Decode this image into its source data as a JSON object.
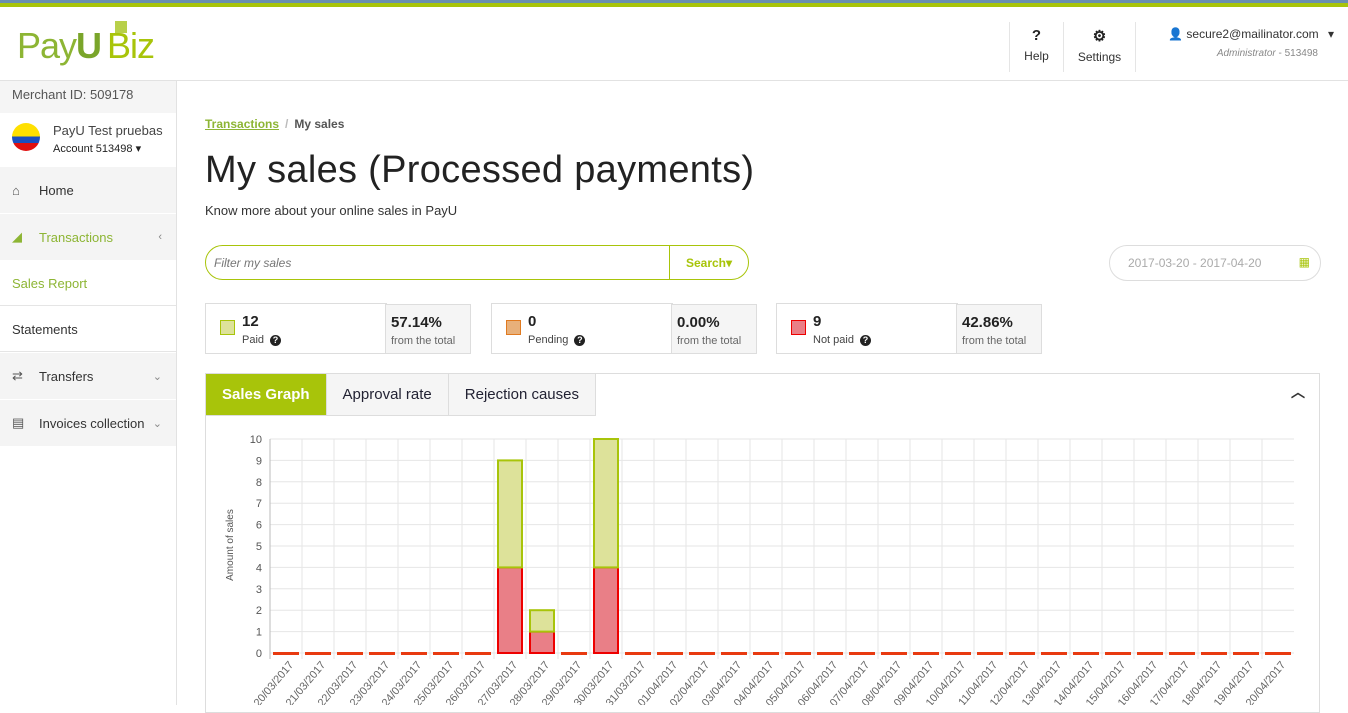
{
  "header": {
    "logo": "PayU Biz",
    "help": "Help",
    "settings": "Settings",
    "user_email": "secure2@mailinator.com",
    "user_role": "Administrator",
    "user_account": "- 513498"
  },
  "sidebar": {
    "merchant": "Merchant ID: 509178",
    "account_name": "PayU Test pruebas",
    "account_label": "Account  513498",
    "items": [
      {
        "label": "Home"
      },
      {
        "label": "Transactions"
      },
      {
        "label": "Sales Report"
      },
      {
        "label": "Statements"
      },
      {
        "label": "Transfers"
      },
      {
        "label": "Invoices collection"
      }
    ]
  },
  "main": {
    "breadcrumb": [
      "Transactions",
      "My sales"
    ],
    "title": "My sales (Processed payments)",
    "subtitle": "Know more about your online sales in PayU",
    "search": {
      "placeholder": "Filter my sales",
      "button": "Search"
    },
    "date_range": "2017-03-20 - 2017-04-20",
    "stats": [
      {
        "count": "12",
        "label": "Paid",
        "percent": "57.14%",
        "note": "from the total",
        "color": "#dde29a"
      },
      {
        "count": "0",
        "label": "Pending",
        "percent": "0.00%",
        "note": "from the total",
        "color": "#e8b07a"
      },
      {
        "count": "9",
        "label": "Not paid",
        "percent": "42.86%",
        "note": "from the total",
        "color": "#ea7f87"
      }
    ],
    "tabs": [
      "Sales Graph",
      "Approval rate",
      "Rejection causes"
    ]
  },
  "chart_data": {
    "type": "bar",
    "stacked": true,
    "ylabel": "Amount of sales",
    "ylim": [
      0,
      10
    ],
    "yticks": [
      0,
      1,
      2,
      3,
      4,
      5,
      6,
      7,
      8,
      9,
      10
    ],
    "categories": [
      "20/03/2017",
      "21/03/2017",
      "22/03/2017",
      "23/03/2017",
      "24/03/2017",
      "25/03/2017",
      "26/03/2017",
      "27/03/2017",
      "28/03/2017",
      "29/03/2017",
      "30/03/2017",
      "31/03/2017",
      "01/04/2017",
      "02/04/2017",
      "03/04/2017",
      "04/04/2017",
      "05/04/2017",
      "06/04/2017",
      "07/04/2017",
      "08/04/2017",
      "09/04/2017",
      "10/04/2017",
      "11/04/2017",
      "12/04/2017",
      "13/04/2017",
      "14/04/2017",
      "15/04/2017",
      "16/04/2017",
      "17/04/2017",
      "18/04/2017",
      "19/04/2017",
      "20/04/2017"
    ],
    "series": [
      {
        "name": "Not paid",
        "color": "#e97f87",
        "stroke": "#ee0000",
        "values": [
          0,
          0,
          0,
          0,
          0,
          0,
          0,
          4,
          1,
          0,
          4,
          0,
          0,
          0,
          0,
          0,
          0,
          0,
          0,
          0,
          0,
          0,
          0,
          0,
          0,
          0,
          0,
          0,
          0,
          0,
          0,
          0
        ]
      },
      {
        "name": "Paid",
        "color": "#dde29a",
        "stroke": "#a8c40a",
        "values": [
          0,
          0,
          0,
          0,
          0,
          0,
          0,
          5,
          1,
          0,
          6,
          0,
          0,
          0,
          0,
          0,
          0,
          0,
          0,
          0,
          0,
          0,
          0,
          0,
          0,
          0,
          0,
          0,
          0,
          0,
          0,
          0
        ]
      }
    ]
  }
}
